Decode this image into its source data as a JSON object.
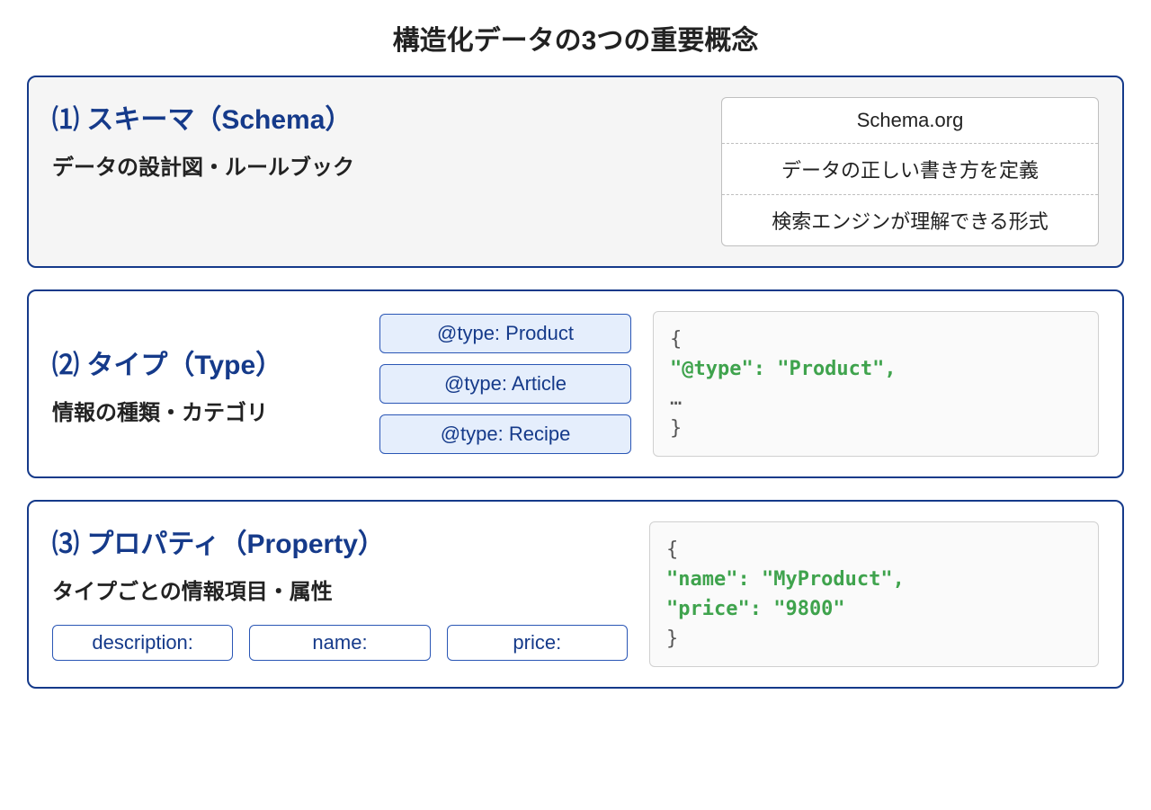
{
  "type": "infographic",
  "title": "構造化データの3つの重要概念",
  "colors": {
    "panel_border": "#153a8a",
    "panel_bg_tint": "#f5f5f5",
    "panel_bg_white": "#ffffff",
    "heading_blue": "#153a8a",
    "body_text": "#222222",
    "pill_bg": "#e5eefc",
    "pill_border": "#2a56b5",
    "prop_pill_border": "#2a56b5",
    "code_green": "#3fa34d",
    "code_bg": "#fafafa",
    "schema_box_border": "#bfbfbf"
  },
  "panel1": {
    "heading": "⑴ スキーマ（Schema）",
    "sub": "データの設計図・ルールブック",
    "rows": [
      "Schema.org",
      "データの正しい書き方を定義",
      "検索エンジンが理解できる形式"
    ]
  },
  "panel2": {
    "heading": "⑵ タイプ（Type）",
    "sub": "情報の種類・カテゴリ",
    "types": [
      "@type: Product",
      "@type: Article",
      "@type: Recipe"
    ],
    "code_brace_open": "{",
    "code_line": "\"@type\": \"Product\",",
    "code_ellipsis": "…",
    "code_brace_close": "}"
  },
  "panel3": {
    "heading": "⑶ プロパティ（Property）",
    "sub": "タイプごとの情報項目・属性",
    "props": [
      "description:",
      "name:",
      "price:"
    ],
    "code_brace_open": "{",
    "code_line1": "\"name\": \"MyProduct\",",
    "code_line2": "\"price\": \"9800\"",
    "code_brace_close": "}"
  }
}
